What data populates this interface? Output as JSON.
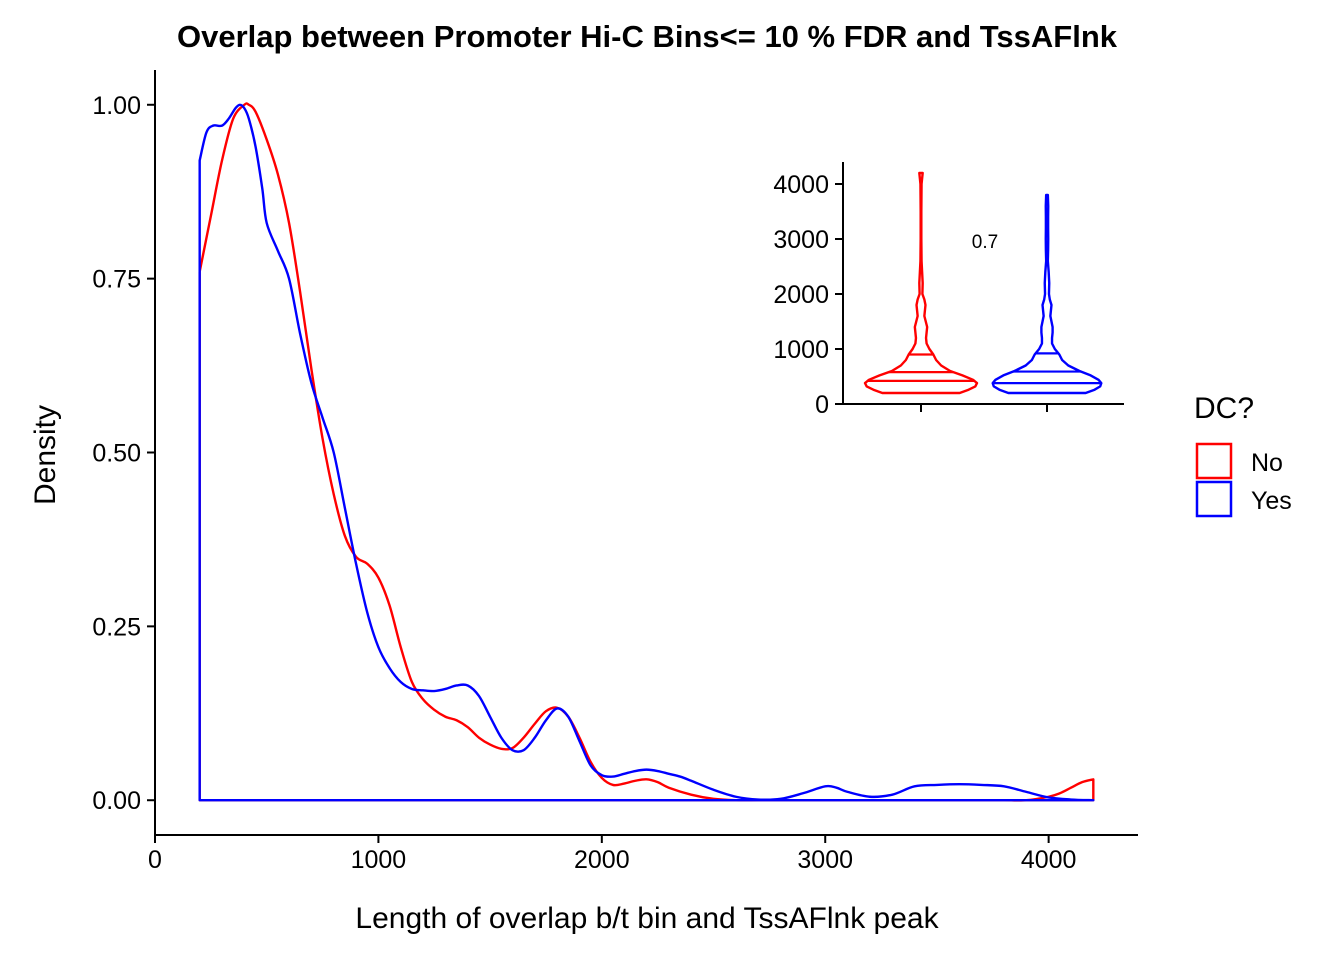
{
  "chart_data": {
    "main": {
      "type": "area",
      "title": "Overlap between Promoter Hi-C Bins<= 10 % FDR and TssAFlnk",
      "xlabel": "Length of overlap b/t bin and TssAFlnk peak",
      "ylabel": "Density",
      "xlim": [
        0,
        4400
      ],
      "ylim": [
        -0.05,
        1.05
      ],
      "x_ticks": [
        0,
        1000,
        2000,
        3000,
        4000
      ],
      "x_tick_labels": [
        "0",
        "1000",
        "2000",
        "3000",
        "4000"
      ],
      "y_ticks": [
        0,
        0.25,
        0.5,
        0.75,
        1.0
      ],
      "y_tick_labels": [
        "0.00",
        "0.25",
        "0.50",
        "0.75",
        "1.00"
      ],
      "grid": false,
      "series": [
        {
          "name": "No",
          "color": "#FF0000",
          "x": [
            200,
            250,
            300,
            350,
            400,
            420,
            450,
            500,
            550,
            600,
            650,
            700,
            750,
            800,
            850,
            900,
            950,
            1000,
            1050,
            1100,
            1150,
            1200,
            1250,
            1300,
            1350,
            1400,
            1450,
            1500,
            1550,
            1600,
            1650,
            1700,
            1750,
            1800,
            1850,
            1900,
            1950,
            2000,
            2050,
            2100,
            2150,
            2200,
            2250,
            2300,
            2400,
            2500,
            2600,
            2700,
            2800,
            2900,
            3000,
            3100,
            3200,
            3300,
            3400,
            3500,
            3600,
            3700,
            3800,
            3900,
            4000,
            4050,
            4100,
            4150,
            4200
          ],
          "values": [
            0.76,
            0.84,
            0.92,
            0.98,
            1.0,
            1.0,
            0.99,
            0.95,
            0.9,
            0.83,
            0.73,
            0.62,
            0.52,
            0.44,
            0.38,
            0.35,
            0.34,
            0.32,
            0.28,
            0.22,
            0.17,
            0.145,
            0.13,
            0.12,
            0.115,
            0.105,
            0.09,
            0.08,
            0.074,
            0.075,
            0.09,
            0.11,
            0.128,
            0.133,
            0.12,
            0.09,
            0.055,
            0.032,
            0.022,
            0.024,
            0.028,
            0.03,
            0.026,
            0.018,
            0.008,
            0.002,
            0.0,
            0.0,
            0.0,
            0.0,
            0.0,
            0.0,
            0.0,
            0.0,
            0.0,
            0.0,
            0.0,
            0.0,
            0.0,
            0.0,
            0.005,
            0.01,
            0.018,
            0.026,
            0.03
          ]
        },
        {
          "name": "Yes",
          "color": "#0000FF",
          "x": [
            200,
            230,
            260,
            300,
            330,
            360,
            380,
            400,
            420,
            450,
            480,
            500,
            550,
            600,
            650,
            700,
            750,
            800,
            850,
            900,
            950,
            1000,
            1050,
            1100,
            1150,
            1200,
            1250,
            1300,
            1350,
            1400,
            1450,
            1500,
            1550,
            1600,
            1650,
            1700,
            1750,
            1800,
            1850,
            1900,
            1950,
            2000,
            2050,
            2100,
            2150,
            2200,
            2250,
            2300,
            2350,
            2400,
            2500,
            2600,
            2700,
            2800,
            2900,
            3000,
            3050,
            3100,
            3200,
            3300,
            3400,
            3500,
            3600,
            3700,
            3800,
            3900,
            4000,
            4100,
            4200
          ],
          "values": [
            0.92,
            0.96,
            0.97,
            0.97,
            0.98,
            0.995,
            1.0,
            0.995,
            0.98,
            0.94,
            0.88,
            0.83,
            0.79,
            0.75,
            0.67,
            0.6,
            0.55,
            0.5,
            0.42,
            0.34,
            0.27,
            0.22,
            0.19,
            0.17,
            0.16,
            0.158,
            0.157,
            0.16,
            0.165,
            0.165,
            0.15,
            0.12,
            0.09,
            0.072,
            0.072,
            0.09,
            0.115,
            0.132,
            0.12,
            0.085,
            0.05,
            0.036,
            0.034,
            0.038,
            0.042,
            0.044,
            0.042,
            0.038,
            0.034,
            0.028,
            0.015,
            0.005,
            0.001,
            0.002,
            0.01,
            0.02,
            0.018,
            0.012,
            0.005,
            0.008,
            0.02,
            0.022,
            0.023,
            0.022,
            0.02,
            0.012,
            0.004,
            0.001,
            0.0
          ]
        }
      ]
    },
    "inset": {
      "type": "violin",
      "ylim": [
        0,
        4400
      ],
      "y_ticks": [
        0,
        1000,
        2000,
        3000,
        4000
      ],
      "y_tick_labels": [
        "0",
        "1000",
        "2000",
        "3000",
        "4000"
      ],
      "annotation": "0.7",
      "groups": [
        {
          "name": "No",
          "color": "#FF0000",
          "quantiles": [
            200,
            420,
            580,
            900
          ],
          "profile": [
            [
              200,
              0.69
            ],
            [
              260,
              0.85
            ],
            [
              320,
              0.97
            ],
            [
              380,
              1.0
            ],
            [
              440,
              0.93
            ],
            [
              520,
              0.74
            ],
            [
              600,
              0.52
            ],
            [
              700,
              0.36
            ],
            [
              800,
              0.27
            ],
            [
              900,
              0.22
            ],
            [
              1000,
              0.15
            ],
            [
              1100,
              0.1
            ],
            [
              1200,
              0.09
            ],
            [
              1300,
              0.1
            ],
            [
              1400,
              0.11
            ],
            [
              1500,
              0.085
            ],
            [
              1600,
              0.06
            ],
            [
              1700,
              0.07
            ],
            [
              1800,
              0.08
            ],
            [
              1900,
              0.06
            ],
            [
              2000,
              0.025
            ],
            [
              2200,
              0.03
            ],
            [
              2400,
              0.02
            ],
            [
              2600,
              0.01
            ],
            [
              3000,
              0.006
            ],
            [
              3500,
              0.006
            ],
            [
              4000,
              0.01
            ],
            [
              4100,
              0.02
            ],
            [
              4200,
              0.03
            ]
          ]
        },
        {
          "name": "Yes",
          "color": "#0000FF",
          "quantiles": [
            200,
            380,
            590,
            920
          ],
          "profile": [
            [
              200,
              0.69
            ],
            [
              260,
              0.85
            ],
            [
              320,
              0.95
            ],
            [
              380,
              0.97
            ],
            [
              440,
              0.92
            ],
            [
              520,
              0.78
            ],
            [
              600,
              0.58
            ],
            [
              700,
              0.38
            ],
            [
              800,
              0.27
            ],
            [
              900,
              0.22
            ],
            [
              1000,
              0.14
            ],
            [
              1100,
              0.09
            ],
            [
              1200,
              0.09
            ],
            [
              1300,
              0.1
            ],
            [
              1400,
              0.1
            ],
            [
              1500,
              0.08
            ],
            [
              1600,
              0.06
            ],
            [
              1700,
              0.07
            ],
            [
              1800,
              0.08
            ],
            [
              1900,
              0.05
            ],
            [
              2000,
              0.035
            ],
            [
              2200,
              0.04
            ],
            [
              2400,
              0.03
            ],
            [
              2600,
              0.015
            ],
            [
              2800,
              0.02
            ],
            [
              3000,
              0.022
            ],
            [
              3200,
              0.02
            ],
            [
              3400,
              0.02
            ],
            [
              3600,
              0.022
            ],
            [
              3800,
              0.015
            ]
          ]
        }
      ]
    },
    "legend": {
      "title": "DC?",
      "placement": "right",
      "entries": [
        {
          "label": "No",
          "color": "#FF0000"
        },
        {
          "label": "Yes",
          "color": "#0000FF"
        }
      ]
    }
  }
}
